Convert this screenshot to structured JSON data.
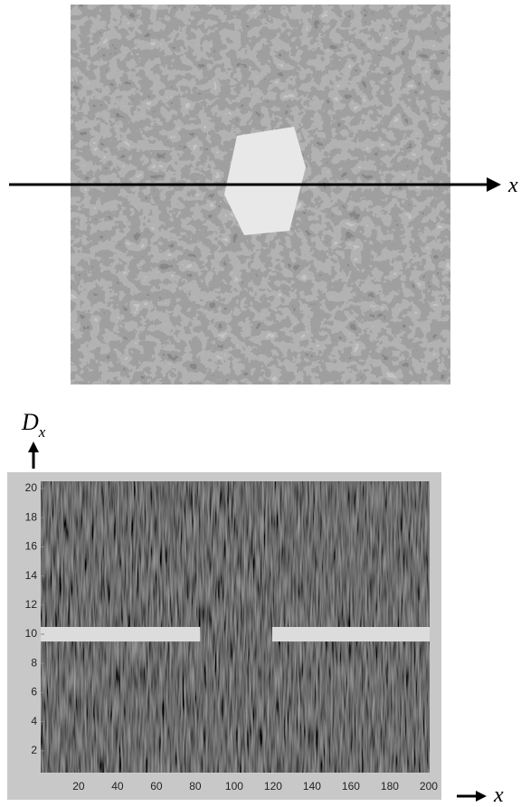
{
  "figure": {
    "image_axis_label": "x"
  },
  "chart_data": {
    "type": "heatmap",
    "y_label": {
      "main": "D",
      "sub": "x"
    },
    "x_label": "x",
    "xlim": [
      0.5,
      200.5
    ],
    "xticks": [
      20,
      40,
      60,
      80,
      100,
      120,
      140,
      160,
      180,
      200
    ],
    "ylim": [
      0.5,
      20.5
    ],
    "yticks": [
      2,
      4,
      6,
      8,
      10,
      12,
      14,
      16,
      18,
      20
    ],
    "segments": [
      {
        "x": [
          1,
          82
        ],
        "y": 10
      },
      {
        "x": [
          120,
          200
        ],
        "y": 10
      }
    ]
  }
}
